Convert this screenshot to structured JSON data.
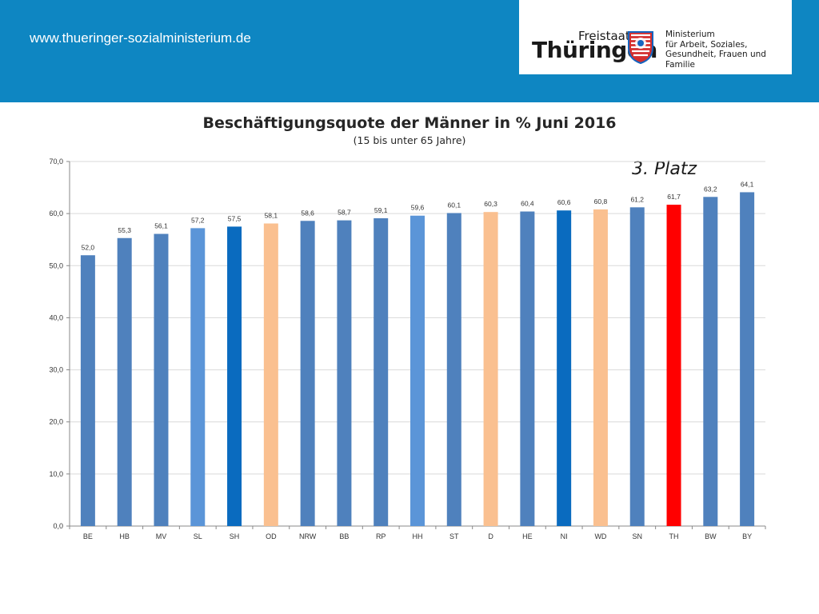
{
  "header": {
    "url": "www.thueringer-sozialministerium.de",
    "logo": {
      "line1": "Freistaat",
      "line2": "Thüringen",
      "ministry_lines": [
        "Ministerium",
        "für Arbeit, Soziales,",
        "Gesundheit, Frauen und Familie"
      ]
    },
    "colors": {
      "banner": "#0e86c2"
    }
  },
  "chart_data": {
    "type": "bar",
    "title": "Beschäftigungsquote der Männer in % Juni 2016",
    "subtitle": "(15 bis unter 65 Jahre)",
    "annotation": "3. Platz",
    "categories": [
      "BE",
      "HB",
      "MV",
      "SL",
      "SH",
      "OD",
      "NRW",
      "BB",
      "RP",
      "HH",
      "ST",
      "D",
      "HE",
      "NI",
      "WD",
      "SN",
      "TH",
      "BW",
      "BY"
    ],
    "values": [
      52.0,
      55.3,
      56.1,
      57.2,
      57.5,
      58.1,
      58.6,
      58.7,
      59.1,
      59.6,
      60.1,
      60.3,
      60.4,
      60.6,
      60.8,
      61.2,
      61.7,
      63.2,
      64.1
    ],
    "value_labels": [
      "52,0",
      "55,3",
      "56,1",
      "57,2",
      "57,5",
      "58,1",
      "58,6",
      "58,7",
      "59,1",
      "59,6",
      "60,1",
      "60,3",
      "60,4",
      "60,6",
      "60,8",
      "61,2",
      "61,7",
      "63,2",
      "64,1"
    ],
    "colors": [
      "#4f81bd",
      "#4f81bd",
      "#4f81bd",
      "#5b95d8",
      "#0a6bbf",
      "#fac090",
      "#4f81bd",
      "#4f81bd",
      "#4f81bd",
      "#5b95d8",
      "#4f81bd",
      "#fac090",
      "#4f81bd",
      "#0a6bbf",
      "#fac090",
      "#4f81bd",
      "#ff0000",
      "#4f81bd",
      "#4f81bd"
    ],
    "ylim": [
      0,
      70
    ],
    "yticks": [
      0,
      10,
      20,
      30,
      40,
      50,
      60,
      70
    ],
    "ytick_labels": [
      "0,0",
      "10,0",
      "20,0",
      "30,0",
      "40,0",
      "50,0",
      "60,0",
      "70,0"
    ],
    "grid": true
  }
}
